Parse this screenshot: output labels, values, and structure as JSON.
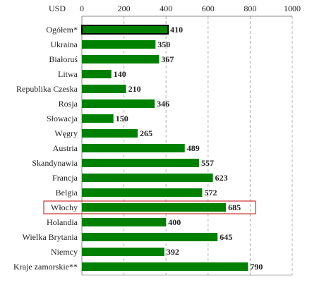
{
  "chart_data": {
    "type": "bar",
    "orientation": "horizontal",
    "unit_label": "USD",
    "xlim": [
      0,
      1000
    ],
    "xticks": [
      "0",
      "200",
      "400",
      "600",
      "800",
      "1000"
    ],
    "grid": "vertical dashed",
    "categories": [
      "Ogółem*",
      "Ukraina",
      "Białoruś",
      "Litwa",
      "Republika Czeska",
      "Rosja",
      "Słowacja",
      "Węgry",
      "Austria",
      "Skandynawia",
      "Francja",
      "Belgia",
      "Włochy",
      "Holandia",
      "Wielka Brytania",
      "Niemcy",
      "Kraje zamorskie**"
    ],
    "values": [
      410,
      350,
      367,
      140,
      210,
      346,
      150,
      265,
      489,
      557,
      623,
      572,
      685,
      400,
      645,
      392,
      790
    ],
    "value_labels": [
      "410",
      "350",
      "367",
      "140",
      "210",
      "346",
      "150",
      "265",
      "489",
      "557",
      "623",
      "572",
      "685",
      "400",
      "645",
      "392",
      "790"
    ],
    "highlighted_category": "Włochy",
    "bar_color": "#008000",
    "highlight_color": "#cc3333"
  }
}
